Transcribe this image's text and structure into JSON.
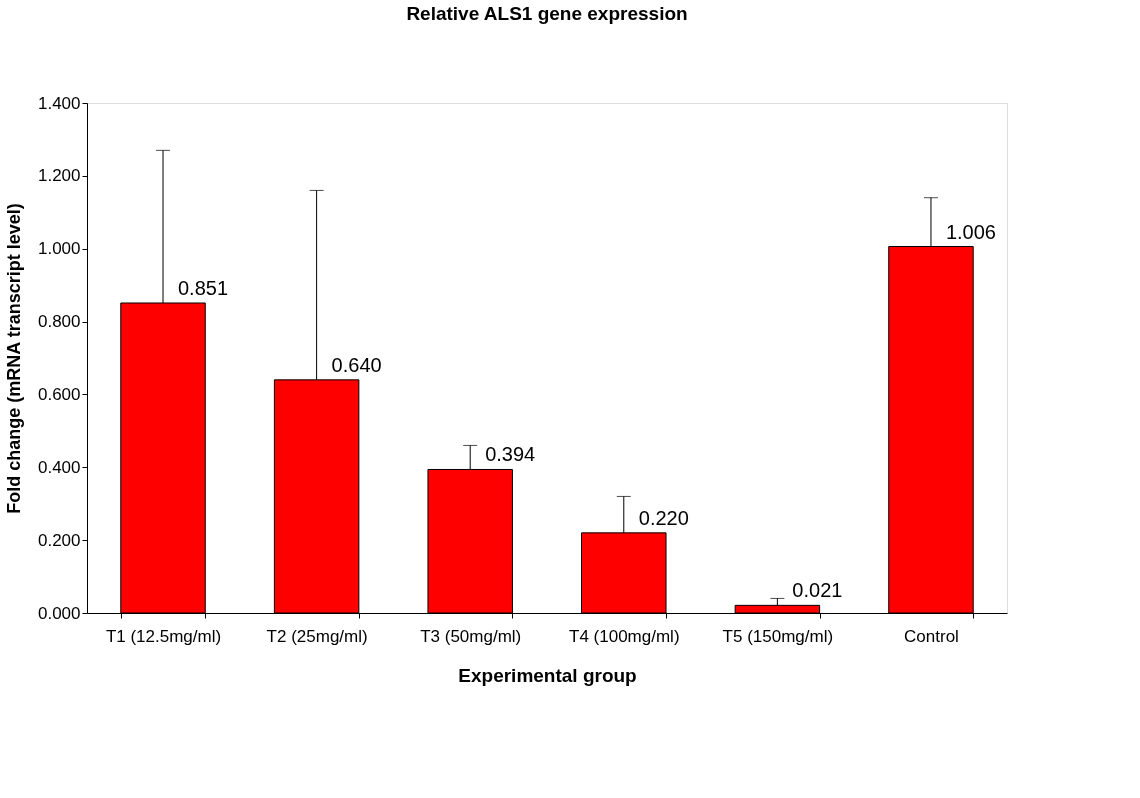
{
  "chart_data": {
    "type": "bar",
    "title": "Relative ALS1 gene expression",
    "xlabel": "Experimental group",
    "ylabel": "Fold change (mRNA transcript level)",
    "categories": [
      "T1 (12.5mg/ml)",
      "T2 (25mg/ml)",
      "T3 (50mg/ml)",
      "T4 (100mg/ml)",
      "T5 (150mg/ml)",
      "Control"
    ],
    "values": [
      0.851,
      0.64,
      0.394,
      0.22,
      0.021,
      1.006
    ],
    "errors": [
      [
        0.851,
        1.27
      ],
      [
        0.64,
        1.16
      ],
      [
        0.394,
        0.46
      ],
      [
        0.22,
        0.32
      ],
      [
        0.021,
        0.04
      ],
      [
        1.006,
        1.14
      ]
    ],
    "color": "#ff0000",
    "value_labels": [
      "0.851",
      "0.640",
      "0.394",
      "0.220",
      "0.021",
      "1.006"
    ],
    "grid": false,
    "ylim": [
      0,
      1.4
    ],
    "yticks": [
      {
        "value": 0,
        "label": "0.000"
      },
      {
        "value": 0.2,
        "label": "0.200"
      },
      {
        "value": 0.4,
        "label": "0.400"
      },
      {
        "value": 0.6,
        "label": "0.600"
      },
      {
        "value": 0.8,
        "label": "0.800"
      },
      {
        "value": 1.0,
        "label": "1.000"
      },
      {
        "value": 1.2,
        "label": "1.200"
      },
      {
        "value": 1.4,
        "label": "1.400"
      }
    ]
  }
}
